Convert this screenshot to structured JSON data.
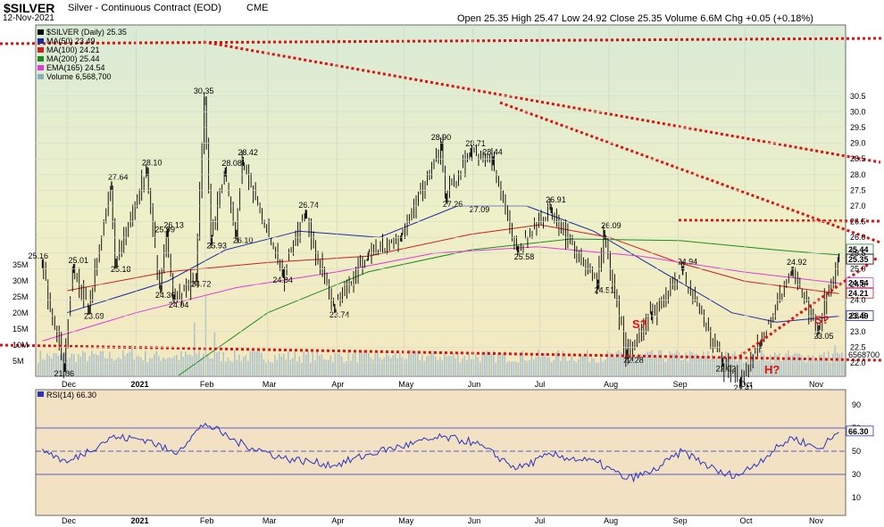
{
  "header": {
    "symbol": "$SILVER",
    "name": "Silver - Continuous Contract (EOD)",
    "exchange": "CME",
    "date": "12-Nov-2021",
    "open_label": "Open",
    "open": "25.35",
    "high_label": "High",
    "high": "25.47",
    "low_label": "Low",
    "low": "24.92",
    "close_label": "Close",
    "close": "25.35",
    "volume_label": "Volume",
    "volume": "6.6M",
    "chg_label": "Chg",
    "chg": "+0.05 (+0.18%)"
  },
  "legend": [
    {
      "text": "$SILVER (Daily) 25.35",
      "color": "#000000"
    },
    {
      "text": "MA(50) 23.49",
      "color": "#1a2aa0"
    },
    {
      "text": "MA(100) 24.21",
      "color": "#cc1f1f"
    },
    {
      "text": "MA(200) 25.44",
      "color": "#1f8a1f"
    },
    {
      "text": "EMA(165) 24.54",
      "color": "#e03ad8"
    },
    {
      "text": "Volume 6,568,700",
      "color": "#8ab0c0"
    }
  ],
  "colors": {
    "price_bg": "#eef0c8",
    "rsi_bg": "#f3e1c4",
    "trend": "#dd1111",
    "ma50": "#1a2aa0",
    "ma100": "#cc1f1f",
    "ma200": "#1f8a1f",
    "ema165": "#e03ad8",
    "volume": "#aec4cc",
    "rsi": "#2a33c0"
  },
  "annotations": [
    "S?",
    "S?",
    "H?"
  ],
  "rsi": {
    "label": "RSI(14) 66.30",
    "last": "66.30"
  },
  "chart_data": [
    {
      "type": "line",
      "title": "$SILVER Silver - Continuous Contract (EOD) CME",
      "x_ticks": [
        "Dec",
        "2021",
        "Feb",
        "Mar",
        "Apr",
        "May",
        "Jun",
        "Jul",
        "Aug",
        "Sep",
        "Oct",
        "Nov"
      ],
      "y_ticks": [
        "22.0",
        "22.5",
        "23.0",
        "23.5",
        "24.0",
        "24.5",
        "25.0",
        "25.5",
        "26.0",
        "26.5",
        "27.0",
        "27.5",
        "28.0",
        "28.5",
        "29.0",
        "29.5",
        "30.0",
        "30.5"
      ],
      "ylim": [
        21.5,
        30.5
      ],
      "last_price_labels": [
        "25.44",
        "25.35",
        "24.54",
        "24.21",
        "23.49"
      ],
      "price_labels": [
        {
          "text": "25.16",
          "x": "2020-11-20",
          "y": 25.16
        },
        {
          "text": "21.86",
          "x": "2020-11-30",
          "y": 21.86
        },
        {
          "text": "25.01",
          "x": "2020-12-04",
          "y": 25.01
        },
        {
          "text": "23.69",
          "x": "2020-12-11",
          "y": 23.69
        },
        {
          "text": "27.64",
          "x": "2020-12-21",
          "y": 27.64
        },
        {
          "text": "25.18",
          "x": "2020-12-23",
          "y": 25.18
        },
        {
          "text": "28.10",
          "x": "2021-01-06",
          "y": 28.1
        },
        {
          "text": "25.99",
          "x": "2021-01-11",
          "y": 25.99
        },
        {
          "text": "24.36",
          "x": "2021-01-12",
          "y": 24.36
        },
        {
          "text": "26.13",
          "x": "2021-01-15",
          "y": 26.13
        },
        {
          "text": "24.04",
          "x": "2021-01-18",
          "y": 24.04
        },
        {
          "text": "24.72",
          "x": "2021-01-28",
          "y": 24.72
        },
        {
          "text": "30.35",
          "x": "2021-02-01",
          "y": 30.35
        },
        {
          "text": "25.93",
          "x": "2021-02-04",
          "y": 25.93
        },
        {
          "text": "28.08",
          "x": "2021-02-10",
          "y": 28.08
        },
        {
          "text": "28.42",
          "x": "2021-02-18",
          "y": 28.42
        },
        {
          "text": "26.10",
          "x": "2021-02-15",
          "y": 26.1
        },
        {
          "text": "24.84",
          "x": "2021-03-08",
          "y": 24.84
        },
        {
          "text": "26.74",
          "x": "2021-03-18",
          "y": 26.74
        },
        {
          "text": "23.74",
          "x": "2021-03-31",
          "y": 23.74
        },
        {
          "text": "28.90",
          "x": "2021-05-18",
          "y": 28.9
        },
        {
          "text": "27.26",
          "x": "2021-05-20",
          "y": 27.26
        },
        {
          "text": "28.71",
          "x": "2021-05-31",
          "y": 28.71
        },
        {
          "text": "27.09",
          "x": "2021-06-01",
          "y": 27.09
        },
        {
          "text": "28.44",
          "x": "2021-06-10",
          "y": 28.44
        },
        {
          "text": "26.91",
          "x": "2021-07-06",
          "y": 26.91
        },
        {
          "text": "25.58",
          "x": "2021-06-21",
          "y": 25.58
        },
        {
          "text": "26.09",
          "x": "2021-07-30",
          "y": 26.09
        },
        {
          "text": "24.51",
          "x": "2021-07-27",
          "y": 24.51
        },
        {
          "text": "22.28",
          "x": "2021-08-09",
          "y": 22.28
        },
        {
          "text": "24.94",
          "x": "2021-09-03",
          "y": 24.94
        },
        {
          "text": "22.02",
          "x": "2021-09-21",
          "y": 22.02
        },
        {
          "text": "21.41",
          "x": "2021-09-29",
          "y": 21.41
        },
        {
          "text": "24.92",
          "x": "2021-10-22",
          "y": 24.92
        },
        {
          "text": "23.05",
          "x": "2021-11-03",
          "y": 23.05
        }
      ],
      "series": [
        {
          "name": "$SILVER (Daily) 25.35",
          "x": [
            "2020-11-20",
            "2020-11-30",
            "2020-12-04",
            "2020-12-11",
            "2020-12-21",
            "2020-12-23",
            "2021-01-06",
            "2021-01-12",
            "2021-01-15",
            "2021-01-18",
            "2021-01-28",
            "2021-02-01",
            "2021-02-04",
            "2021-02-10",
            "2021-02-15",
            "2021-02-18",
            "2021-03-08",
            "2021-03-18",
            "2021-03-31",
            "2021-04-15",
            "2021-04-30",
            "2021-05-18",
            "2021-05-20",
            "2021-05-31",
            "2021-06-10",
            "2021-06-21",
            "2021-07-06",
            "2021-07-27",
            "2021-07-30",
            "2021-08-09",
            "2021-08-20",
            "2021-09-03",
            "2021-09-21",
            "2021-09-29",
            "2021-10-08",
            "2021-10-22",
            "2021-11-03",
            "2021-11-12"
          ],
          "values": [
            25.16,
            21.86,
            25.01,
            23.69,
            27.64,
            25.18,
            28.1,
            24.36,
            26.13,
            24.04,
            24.72,
            30.35,
            25.93,
            28.08,
            26.1,
            28.42,
            24.84,
            26.74,
            23.74,
            25.4,
            26.0,
            28.9,
            27.26,
            28.71,
            28.44,
            25.58,
            26.91,
            24.51,
            26.09,
            22.28,
            23.5,
            24.94,
            22.02,
            21.41,
            22.6,
            24.92,
            23.05,
            25.35
          ]
        },
        {
          "name": "MA(50) 23.49",
          "x": [
            "2020-12-01",
            "2021-01-15",
            "2021-02-10",
            "2021-03-15",
            "2021-04-20",
            "2021-05-25",
            "2021-06-25",
            "2021-07-25",
            "2021-08-25",
            "2021-09-25",
            "2021-10-15",
            "2021-11-12"
          ],
          "values": [
            23.6,
            24.6,
            25.6,
            26.2,
            26.0,
            27.0,
            27.0,
            26.2,
            24.9,
            23.6,
            23.3,
            23.49
          ]
        },
        {
          "name": "MA(100) 24.21",
          "x": [
            "2020-12-01",
            "2021-01-15",
            "2021-03-01",
            "2021-04-15",
            "2021-05-31",
            "2021-07-01",
            "2021-08-01",
            "2021-09-01",
            "2021-10-01",
            "2021-11-12"
          ],
          "values": [
            24.3,
            24.9,
            25.2,
            25.4,
            26.1,
            26.4,
            26.0,
            25.2,
            24.6,
            24.21
          ]
        },
        {
          "name": "MA(200) 25.44",
          "x": [
            "2021-01-20",
            "2021-03-01",
            "2021-04-15",
            "2021-05-31",
            "2021-07-15",
            "2021-09-01",
            "2021-10-15",
            "2021-11-12"
          ],
          "values": [
            21.6,
            23.6,
            24.9,
            25.6,
            25.95,
            25.9,
            25.6,
            25.44
          ]
        },
        {
          "name": "EMA(165) 24.54",
          "x": [
            "2020-11-20",
            "2021-01-01",
            "2021-02-15",
            "2021-04-01",
            "2021-05-15",
            "2021-06-30",
            "2021-08-15",
            "2021-09-30",
            "2021-11-12"
          ],
          "values": [
            22.7,
            23.6,
            24.4,
            24.9,
            25.5,
            25.7,
            25.4,
            24.9,
            24.54
          ]
        }
      ]
    },
    {
      "type": "bar",
      "title": "Volume 6,568,700",
      "y_ticks": [
        "5M",
        "10M",
        "15M",
        "20M",
        "25M",
        "30M",
        "35M"
      ],
      "last_label": "6568700",
      "spikes": [
        {
          "x": "2021-02-01",
          "value": 26
        },
        {
          "x": "2021-01-27",
          "value": 17
        },
        {
          "x": "2021-02-05",
          "value": 14
        },
        {
          "x": "2020-12-30",
          "value": 10
        },
        {
          "x": "2021-08-09",
          "value": 10
        },
        {
          "x": "2021-11-10",
          "value": 10
        },
        {
          "x": "2021-09-29",
          "value": 8
        }
      ],
      "typical_value": 6.5
    },
    {
      "type": "line",
      "title": "RSI(14) 66.30",
      "y_ticks": [
        "10",
        "30",
        "50",
        "70",
        "90"
      ],
      "ylim": [
        0,
        100
      ],
      "reference_lines": [
        30,
        70
      ],
      "series": [
        {
          "name": "RSI(14) 66.30",
          "x": [
            "2020-11-20",
            "2020-12-01",
            "2020-12-21",
            "2021-01-06",
            "2021-01-18",
            "2021-02-01",
            "2021-02-15",
            "2021-03-08",
            "2021-03-31",
            "2021-04-20",
            "2021-05-18",
            "2021-06-01",
            "2021-06-21",
            "2021-07-06",
            "2021-07-27",
            "2021-08-09",
            "2021-08-20",
            "2021-09-03",
            "2021-09-21",
            "2021-09-29",
            "2021-10-22",
            "2021-11-03",
            "2021-11-12"
          ],
          "values": [
            52,
            40,
            62,
            60,
            48,
            74,
            58,
            44,
            38,
            50,
            62,
            58,
            35,
            47,
            40,
            26,
            32,
            50,
            30,
            30,
            62,
            52,
            66.3
          ]
        }
      ]
    }
  ]
}
